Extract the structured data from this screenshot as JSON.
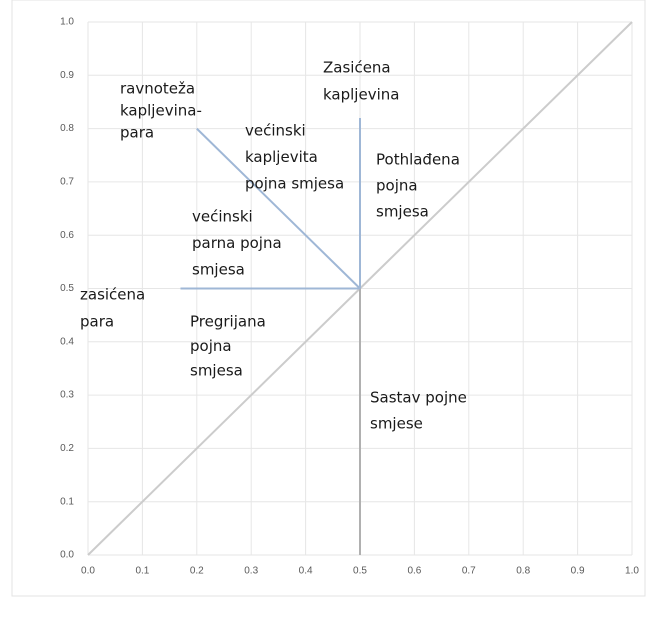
{
  "chart_data": {
    "type": "line",
    "xlim": [
      0,
      1
    ],
    "ylim": [
      0,
      1
    ],
    "xticks": [
      {
        "value": 0,
        "label": "0.0"
      },
      0.1,
      0.2,
      0.3,
      0.4,
      0.5,
      0.6,
      0.7,
      0.8,
      0.9,
      {
        "value": 1,
        "label": "1.0"
      }
    ],
    "yticks": [
      {
        "value": 0,
        "label": "0.0"
      },
      0.1,
      0.2,
      0.3,
      0.4,
      0.5,
      0.6,
      0.7,
      0.8,
      0.9,
      {
        "value": 1,
        "label": "1.0"
      }
    ],
    "grid": true,
    "series": [
      {
        "color": "#cccccc",
        "x": [
          0,
          1
        ],
        "values": [
          0,
          1
        ]
      },
      {
        "color": "#b0b0b0",
        "x": [
          0.5,
          0.5
        ],
        "values": [
          0,
          0.5
        ]
      },
      {
        "color": "#9fb7d6",
        "x": [
          0.5,
          0.5
        ],
        "values": [
          0.5,
          0.82
        ]
      },
      {
        "color": "#9fb7d6",
        "x": [
          0.5,
          0.17
        ],
        "values": [
          0.5,
          0.5
        ]
      },
      {
        "color": "#9fb7d6",
        "x": [
          0.5,
          0.2
        ],
        "values": [
          0.5,
          0.8
        ]
      }
    ],
    "annotations": [
      [
        "ravnoteža",
        "kapljevina-",
        "para"
      ],
      [
        "Zasićena",
        "kapljevina"
      ],
      [
        "većinski",
        "kapljevita",
        "pojna smjesa"
      ],
      [
        "Pothlađena",
        "pojna",
        "smjesa"
      ],
      [
        "većinski",
        "parna pojna",
        "smjesa"
      ],
      [
        "zasićena",
        "para"
      ],
      [
        "Pregrijana",
        "pojna",
        "smjesa"
      ],
      [
        "Sastav pojne",
        "smjese"
      ]
    ]
  }
}
